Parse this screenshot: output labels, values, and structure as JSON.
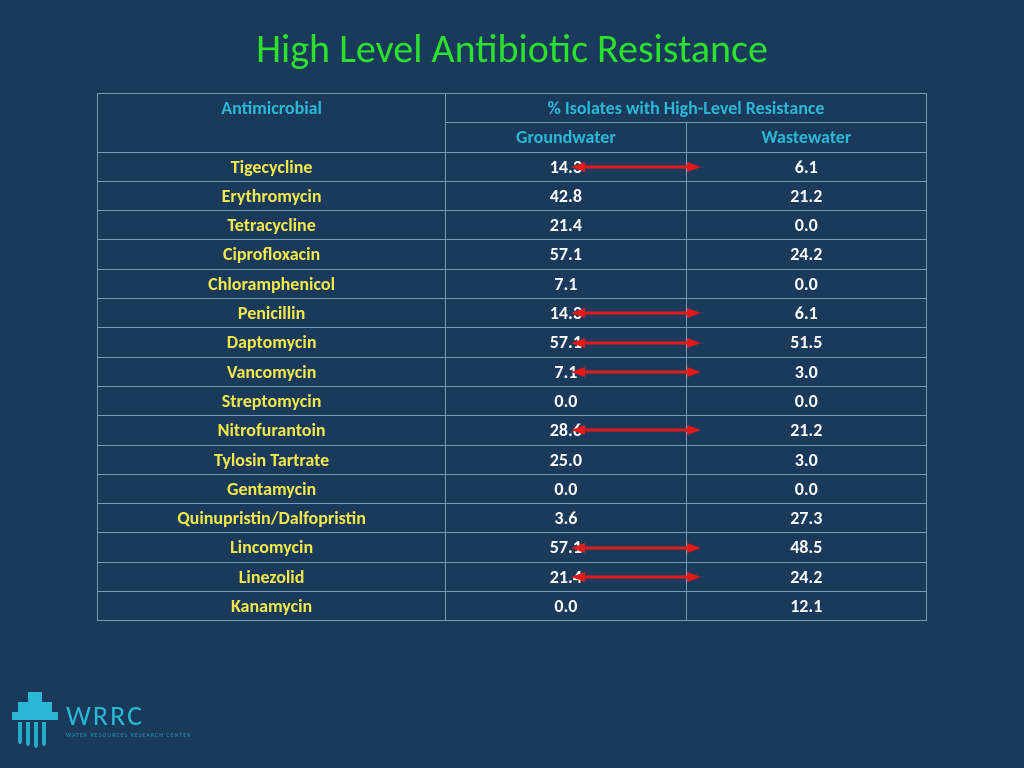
{
  "title": "High Level Antibiotic Resistance",
  "title_color": "#2de02d",
  "background_color": "#1a3a5c",
  "table": {
    "header_color": "#2ab8d6",
    "drug_color": "#f5e94a",
    "value_color": "#ffffff",
    "border_color": "#7a9ab5",
    "arrow_color": "#e61919",
    "columns": {
      "antimicrobial": "Antimicrobial",
      "isolates": "% Isolates with High-Level Resistance",
      "groundwater": "Groundwater",
      "wastewater": "Wastewater"
    },
    "rows": [
      {
        "name": "Tigecycline",
        "gw": "14.3",
        "ww": "6.1",
        "arrow": true
      },
      {
        "name": "Erythromycin",
        "gw": "42.8",
        "ww": "21.2",
        "arrow": false
      },
      {
        "name": "Tetracycline",
        "gw": "21.4",
        "ww": "0.0",
        "arrow": false
      },
      {
        "name": "Ciprofloxacin",
        "gw": "57.1",
        "ww": "24.2",
        "arrow": false
      },
      {
        "name": "Chloramphenicol",
        "gw": "7.1",
        "ww": "0.0",
        "arrow": false
      },
      {
        "name": "Penicillin",
        "gw": "14.3",
        "ww": "6.1",
        "arrow": true
      },
      {
        "name": "Daptomycin",
        "gw": "57.1",
        "ww": "51.5",
        "arrow": true
      },
      {
        "name": "Vancomycin",
        "gw": "7.1",
        "ww": "3.0",
        "arrow": true
      },
      {
        "name": "Streptomycin",
        "gw": "0.0",
        "ww": "0.0",
        "arrow": false
      },
      {
        "name": "Nitrofurantoin",
        "gw": "28.6",
        "ww": "21.2",
        "arrow": true
      },
      {
        "name": "Tylosin Tartrate",
        "gw": "25.0",
        "ww": "3.0",
        "arrow": false
      },
      {
        "name": "Gentamycin",
        "gw": "0.0",
        "ww": "0.0",
        "arrow": false
      },
      {
        "name": "Quinupristin/Dalfopristin",
        "gw": "3.6",
        "ww": "27.3",
        "arrow": false
      },
      {
        "name": "Lincomycin",
        "gw": "57.1",
        "ww": "48.5",
        "arrow": true
      },
      {
        "name": "Linezolid",
        "gw": "21.4",
        "ww": "24.2",
        "arrow": true
      },
      {
        "name": "Kanamycin",
        "gw": "0.0",
        "ww": "12.1",
        "arrow": false
      }
    ]
  },
  "logo": {
    "text": "WRRC",
    "subtext": "WATER RESOURCES RESEARCH CENTER",
    "color": "#2ab8d6"
  }
}
